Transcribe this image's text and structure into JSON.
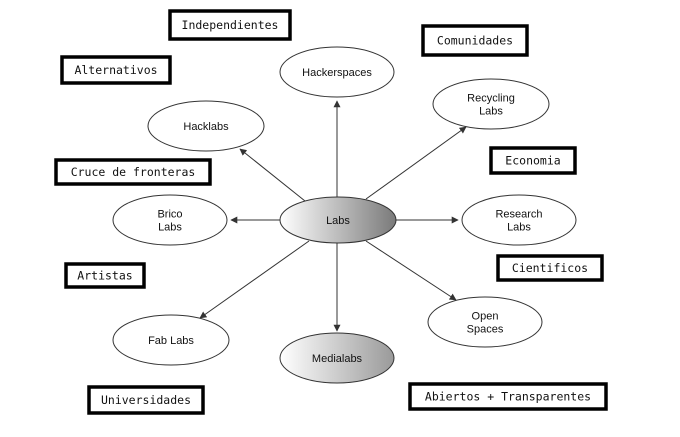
{
  "center": {
    "id": "labs",
    "lines": [
      "Labs"
    ]
  },
  "nodes": [
    {
      "id": "hackerspaces",
      "lines": [
        "Hackerspaces"
      ]
    },
    {
      "id": "recycling-labs",
      "lines": [
        "Recycling",
        "Labs"
      ]
    },
    {
      "id": "research-labs",
      "lines": [
        "Research",
        "Labs"
      ]
    },
    {
      "id": "open-spaces",
      "lines": [
        "Open",
        "Spaces"
      ]
    },
    {
      "id": "medialabs",
      "lines": [
        "Medialabs"
      ]
    },
    {
      "id": "fab-labs",
      "lines": [
        "Fab Labs"
      ]
    },
    {
      "id": "brico-labs",
      "lines": [
        "Brico",
        "Labs"
      ]
    },
    {
      "id": "hacklabs",
      "lines": [
        "Hacklabs"
      ]
    }
  ],
  "tags": [
    {
      "id": "independientes",
      "text": "Independientes"
    },
    {
      "id": "comunidades",
      "text": "Comunidades"
    },
    {
      "id": "alternativos",
      "text": "Alternativos"
    },
    {
      "id": "economia",
      "text": "Economia"
    },
    {
      "id": "cruce-de-fronteras",
      "text": "Cruce de fronteras"
    },
    {
      "id": "artistas",
      "text": "Artistas"
    },
    {
      "id": "cientificos",
      "text": "Cientificos"
    },
    {
      "id": "universidades",
      "text": "Universidades"
    },
    {
      "id": "abiertos-transparentes",
      "text": "Abiertos + Transparentes"
    }
  ],
  "colors": {
    "ink": "#000000",
    "edge": "#333333",
    "gradient_dark": "#7a7a7a",
    "gradient_light": "#ffffff"
  }
}
